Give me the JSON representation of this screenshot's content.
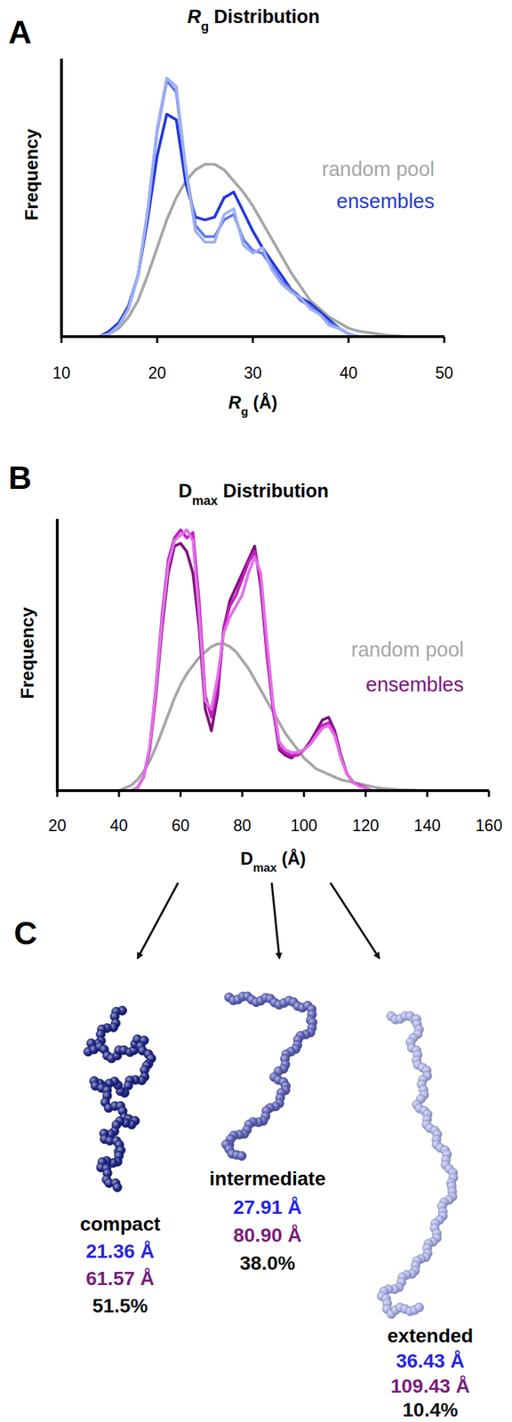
{
  "chart_data": [
    {
      "type": "line",
      "panel_label": "A",
      "title": "Rg Distribution",
      "xlabel": "Rg (Å)",
      "ylabel": "Frequency",
      "x": [
        14,
        15,
        16,
        17,
        18,
        19,
        20,
        21,
        22,
        23,
        24,
        25,
        26,
        27,
        28,
        29,
        30,
        31,
        32,
        33,
        34,
        35,
        36,
        37,
        38,
        39,
        40,
        41,
        42,
        43,
        44,
        45,
        46
      ],
      "xlim": [
        10,
        50
      ],
      "xticks": [
        10,
        20,
        30,
        40,
        50
      ],
      "ylim": [
        0,
        1
      ],
      "tick_labels": "x",
      "grid": false,
      "legend": "right",
      "series": [
        {
          "name": "random pool",
          "color": "#a6a6a6",
          "values": [
            0,
            0.01,
            0.03,
            0.07,
            0.13,
            0.22,
            0.32,
            0.42,
            0.5,
            0.56,
            0.6,
            0.62,
            0.62,
            0.6,
            0.56,
            0.52,
            0.47,
            0.41,
            0.35,
            0.29,
            0.23,
            0.18,
            0.13,
            0.1,
            0.07,
            0.05,
            0.03,
            0.02,
            0.015,
            0.01,
            0.005,
            0.003,
            0
          ]
        },
        {
          "name": "ensembles",
          "color": "#2438dc",
          "values": [
            0,
            0.02,
            0.05,
            0.11,
            0.22,
            0.42,
            0.65,
            0.8,
            0.78,
            0.55,
            0.43,
            0.42,
            0.43,
            0.5,
            0.52,
            0.45,
            0.38,
            0.32,
            0.27,
            0.22,
            0.17,
            0.14,
            0.12,
            0.09,
            0.06,
            0.03,
            0.01,
            0,
            0,
            0,
            0,
            0,
            0
          ]
        },
        {
          "color": "#6179ea",
          "values": [
            0,
            0.01,
            0.04,
            0.1,
            0.22,
            0.45,
            0.74,
            0.92,
            0.88,
            0.6,
            0.4,
            0.36,
            0.36,
            0.42,
            0.44,
            0.35,
            0.31,
            0.3,
            0.25,
            0.2,
            0.17,
            0.13,
            0.11,
            0.08,
            0.05,
            0.03,
            0.01,
            0,
            0,
            0,
            0,
            0,
            0
          ]
        },
        {
          "color": "#9eb0f2",
          "values": [
            0,
            0.01,
            0.04,
            0.1,
            0.22,
            0.45,
            0.75,
            0.93,
            0.9,
            0.6,
            0.38,
            0.34,
            0.34,
            0.44,
            0.46,
            0.33,
            0.3,
            0.32,
            0.24,
            0.19,
            0.16,
            0.14,
            0.1,
            0.08,
            0.04,
            0.03,
            0.01,
            0,
            0,
            0,
            0,
            0,
            0
          ]
        }
      ]
    },
    {
      "type": "line",
      "panel_label": "B",
      "title": "Dmax Distribution",
      "xlabel": "Dmax (Å)",
      "ylabel": "Frequency",
      "x": [
        40,
        42,
        44,
        46,
        48,
        50,
        52,
        54,
        56,
        58,
        60,
        62,
        64,
        66,
        68,
        70,
        72,
        74,
        76,
        78,
        80,
        82,
        84,
        86,
        88,
        90,
        92,
        94,
        96,
        98,
        100,
        102,
        104,
        106,
        108,
        110,
        112,
        114,
        116,
        118,
        120,
        122,
        124,
        126,
        128,
        130,
        132,
        134,
        136,
        138,
        140,
        142,
        144,
        146,
        148,
        150
      ],
      "xlim": [
        20,
        160
      ],
      "xticks": [
        20,
        40,
        60,
        80,
        100,
        120,
        140,
        160
      ],
      "ylim": [
        0,
        1
      ],
      "tick_labels": "x",
      "grid": false,
      "legend": "right",
      "series": [
        {
          "name": "random pool",
          "color": "#a6a6a6",
          "values": [
            0,
            0.01,
            0.02,
            0.04,
            0.07,
            0.11,
            0.16,
            0.22,
            0.28,
            0.34,
            0.39,
            0.43,
            0.46,
            0.49,
            0.51,
            0.53,
            0.54,
            0.54,
            0.53,
            0.51,
            0.48,
            0.45,
            0.41,
            0.37,
            0.33,
            0.29,
            0.25,
            0.21,
            0.18,
            0.15,
            0.12,
            0.1,
            0.08,
            0.07,
            0.06,
            0.05,
            0.04,
            0.035,
            0.03,
            0.025,
            0.02,
            0.015,
            0.01,
            0.008,
            0.006,
            0.004,
            0.003,
            0.002,
            0.001,
            0,
            0,
            0,
            0,
            0,
            0,
            0
          ]
        },
        {
          "name": "ensembles",
          "color": "#7e127c",
          "values": [
            0,
            0,
            0,
            0.01,
            0.05,
            0.15,
            0.35,
            0.6,
            0.8,
            0.9,
            0.91,
            0.88,
            0.8,
            0.6,
            0.3,
            0.22,
            0.35,
            0.6,
            0.7,
            0.75,
            0.8,
            0.85,
            0.9,
            0.75,
            0.5,
            0.3,
            0.15,
            0.13,
            0.12,
            0.14,
            0.15,
            0.18,
            0.22,
            0.26,
            0.27,
            0.22,
            0.13,
            0.06,
            0.03,
            0.02,
            0.01,
            0,
            0,
            0,
            0,
            0,
            0,
            0,
            0,
            0,
            0,
            0,
            0,
            0,
            0,
            0
          ]
        },
        {
          "color": "#c41ec0",
          "values": [
            0,
            0,
            0,
            0.01,
            0.05,
            0.16,
            0.38,
            0.65,
            0.85,
            0.93,
            0.96,
            0.93,
            0.95,
            0.7,
            0.35,
            0.27,
            0.38,
            0.6,
            0.68,
            0.72,
            0.78,
            0.84,
            0.88,
            0.78,
            0.5,
            0.3,
            0.16,
            0.14,
            0.13,
            0.13,
            0.15,
            0.17,
            0.21,
            0.24,
            0.25,
            0.21,
            0.12,
            0.06,
            0.03,
            0.02,
            0.01,
            0,
            0,
            0,
            0,
            0,
            0,
            0,
            0,
            0,
            0,
            0,
            0,
            0,
            0,
            0
          ]
        },
        {
          "color": "#e36fe8",
          "values": [
            0,
            0,
            0,
            0.01,
            0.05,
            0.16,
            0.37,
            0.63,
            0.83,
            0.92,
            0.94,
            0.96,
            0.92,
            0.65,
            0.33,
            0.3,
            0.42,
            0.58,
            0.64,
            0.68,
            0.72,
            0.8,
            0.86,
            0.8,
            0.55,
            0.32,
            0.18,
            0.15,
            0.14,
            0.14,
            0.15,
            0.17,
            0.2,
            0.23,
            0.24,
            0.2,
            0.12,
            0.06,
            0.03,
            0.015,
            0.01,
            0,
            0,
            0,
            0,
            0,
            0,
            0,
            0,
            0,
            0,
            0,
            0,
            0,
            0,
            0
          ]
        }
      ]
    }
  ],
  "panel_c": {
    "panel_label": "C",
    "rg_color": "#2626e0",
    "dmax_color": "#7b1d7b",
    "fraction_color": "#111111",
    "structures": [
      {
        "label": "compact",
        "rg": "21.36 Å",
        "dmax": "61.57 Å",
        "fraction": "51.5%",
        "color": "#1c2585"
      },
      {
        "label": "intermediate",
        "rg": "27.91 Å",
        "dmax": "80.90 Å",
        "fraction": "38.0%",
        "color": "#5a60b8"
      },
      {
        "label": "extended",
        "rg": "36.43 Å",
        "dmax": "109.43 Å",
        "fraction": "10.4%",
        "color": "#aab0e6"
      }
    ]
  }
}
